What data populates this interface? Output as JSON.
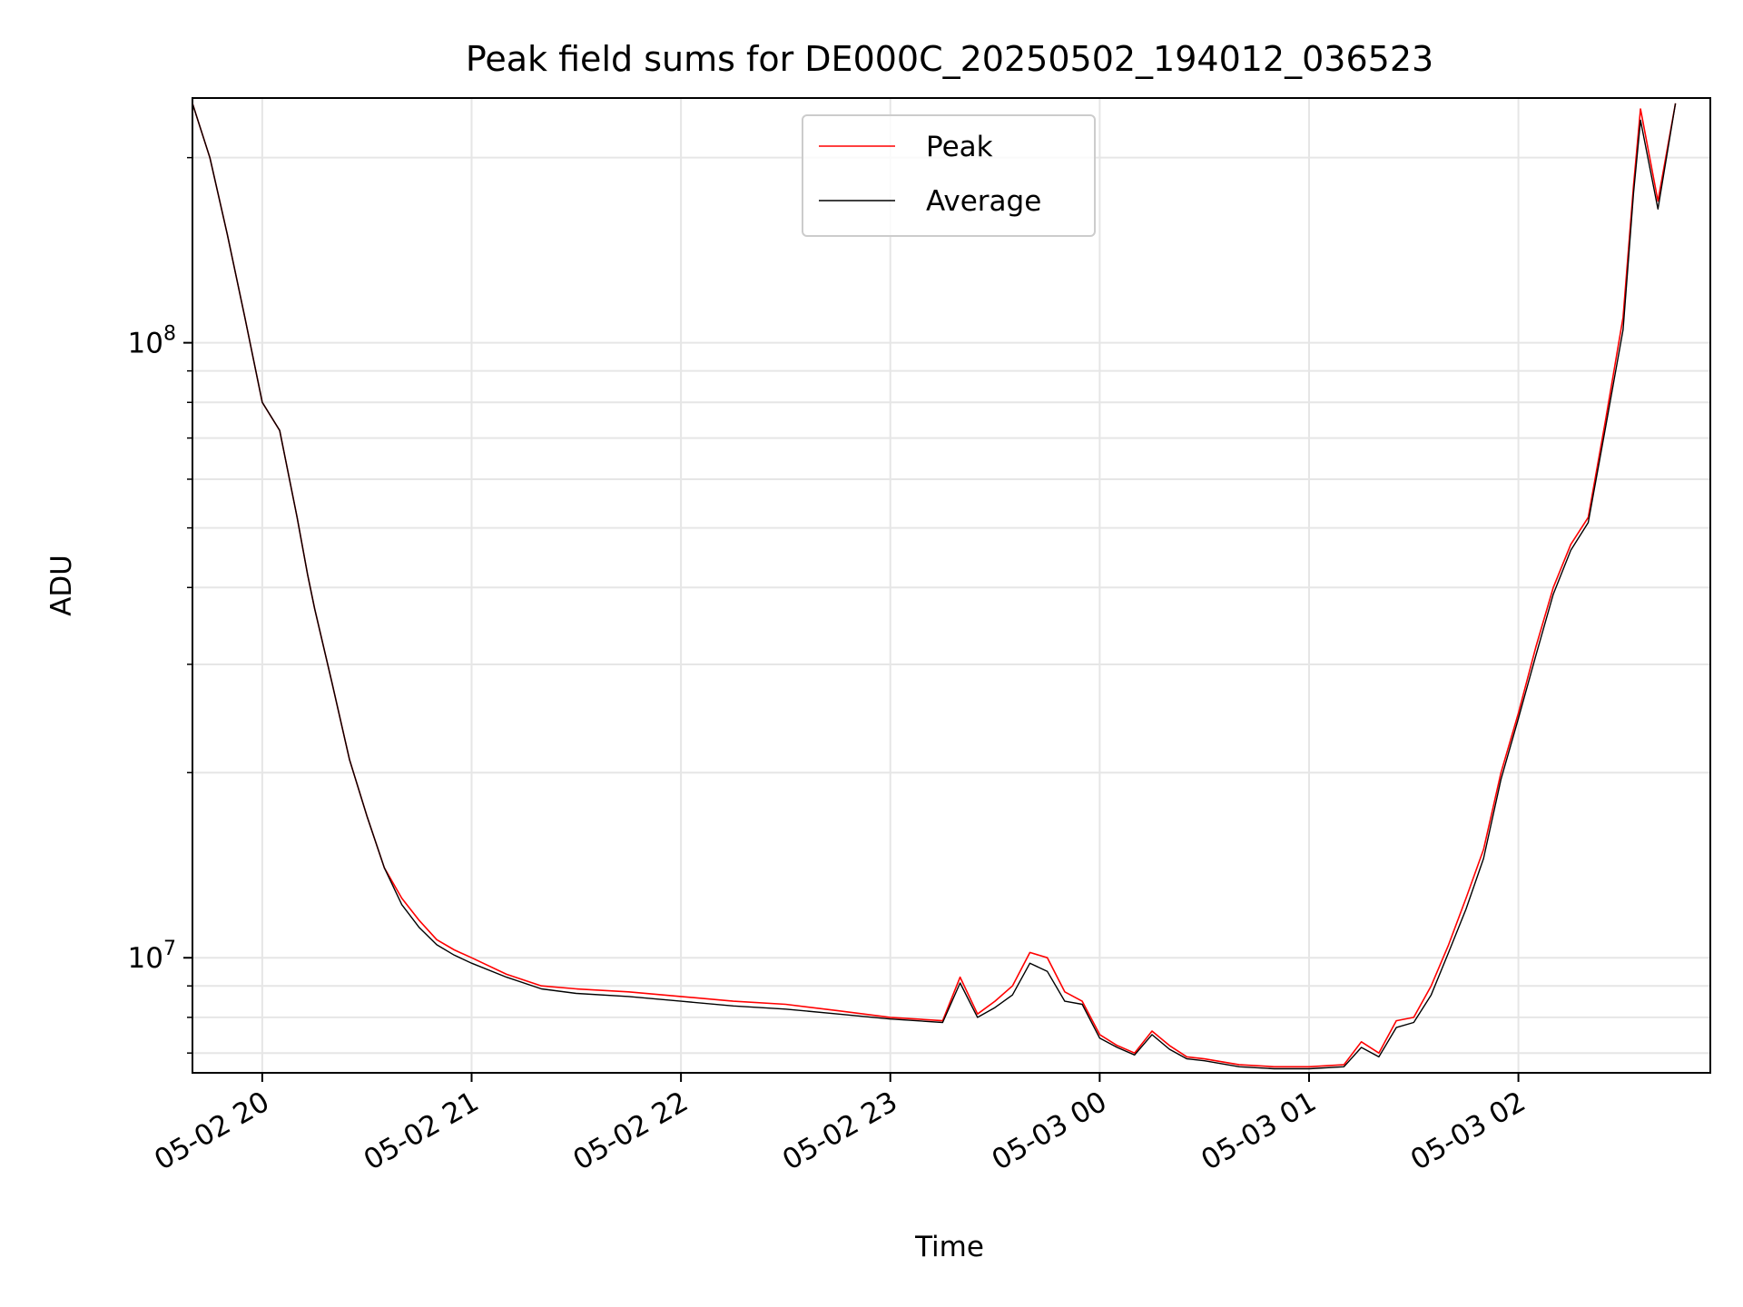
{
  "chart_data": {
    "type": "line",
    "title": "Peak field sums for DE000C_20250502_194012_036523",
    "xlabel": "Time",
    "ylabel": "ADU",
    "y_scale": "log",
    "xlim": [
      "2025-05-02 19:40",
      "2025-05-03 02:55"
    ],
    "ylim": [
      6500000,
      250000000
    ],
    "x_tick_labels": [
      "05-02 20",
      "05-02 21",
      "05-02 22",
      "05-02 23",
      "05-03 00",
      "05-03 01",
      "05-03 02"
    ],
    "y_tick_labels": [
      {
        "base": "10",
        "exp": "7",
        "value": 10000000
      },
      {
        "base": "10",
        "exp": "8",
        "value": 100000000
      }
    ],
    "grid": true,
    "legend_position": "top-center",
    "x": [
      "2025-05-02 19:40",
      "2025-05-02 19:45",
      "2025-05-02 19:50",
      "2025-05-02 19:55",
      "2025-05-02 20:00",
      "2025-05-02 20:05",
      "2025-05-02 20:10",
      "2025-05-02 20:13",
      "2025-05-02 20:15",
      "2025-05-02 20:20",
      "2025-05-02 20:25",
      "2025-05-02 20:30",
      "2025-05-02 20:35",
      "2025-05-02 20:40",
      "2025-05-02 20:45",
      "2025-05-02 20:50",
      "2025-05-02 20:55",
      "2025-05-02 21:00",
      "2025-05-02 21:10",
      "2025-05-02 21:20",
      "2025-05-02 21:30",
      "2025-05-02 21:45",
      "2025-05-02 22:00",
      "2025-05-02 22:15",
      "2025-05-02 22:30",
      "2025-05-02 22:45",
      "2025-05-02 23:00",
      "2025-05-02 23:15",
      "2025-05-02 23:20",
      "2025-05-02 23:25",
      "2025-05-02 23:30",
      "2025-05-02 23:35",
      "2025-05-02 23:40",
      "2025-05-02 23:45",
      "2025-05-02 23:50",
      "2025-05-02 23:55",
      "2025-05-03 00:00",
      "2025-05-03 00:05",
      "2025-05-03 00:10",
      "2025-05-03 00:15",
      "2025-05-03 00:20",
      "2025-05-03 00:25",
      "2025-05-03 00:30",
      "2025-05-03 00:40",
      "2025-05-03 00:50",
      "2025-05-03 01:00",
      "2025-05-03 01:10",
      "2025-05-03 01:15",
      "2025-05-03 01:20",
      "2025-05-03 01:25",
      "2025-05-03 01:30",
      "2025-05-03 01:35",
      "2025-05-03 01:40",
      "2025-05-03 01:45",
      "2025-05-03 01:50",
      "2025-05-03 01:55",
      "2025-05-03 02:00",
      "2025-05-03 02:05",
      "2025-05-03 02:10",
      "2025-05-03 02:15",
      "2025-05-03 02:20",
      "2025-05-03 02:25",
      "2025-05-03 02:30",
      "2025-05-03 02:33",
      "2025-05-03 02:35",
      "2025-05-03 02:40",
      "2025-05-03 02:45"
    ],
    "series": [
      {
        "name": "Peak",
        "color": "#ff0000",
        "values": [
          245000000,
          200000000,
          150000000,
          110000000,
          80000000,
          72000000,
          52000000,
          42000000,
          37000000,
          28000000,
          21000000,
          17000000,
          14000000,
          12500000,
          11500000,
          10700000,
          10300000,
          10000000,
          9400000,
          9000000,
          8900000,
          8800000,
          8650000,
          8500000,
          8400000,
          8200000,
          8000000,
          7900000,
          9300000,
          8100000,
          8500000,
          9000000,
          10200000,
          10000000,
          8800000,
          8500000,
          7500000,
          7200000,
          7000000,
          7600000,
          7200000,
          6900000,
          6850000,
          6700000,
          6650000,
          6650000,
          6700000,
          7300000,
          7000000,
          7900000,
          8000000,
          9000000,
          10500000,
          12500000,
          15000000,
          20000000,
          25000000,
          32000000,
          40000000,
          47000000,
          52000000,
          75000000,
          110000000,
          180000000,
          240000000,
          170000000,
          245000000
        ]
      },
      {
        "name": "Average",
        "color": "#000000",
        "values": [
          245000000,
          200000000,
          150000000,
          110000000,
          80000000,
          72000000,
          52000000,
          42000000,
          37000000,
          28000000,
          21000000,
          17000000,
          14000000,
          12200000,
          11200000,
          10500000,
          10100000,
          9800000,
          9300000,
          8900000,
          8750000,
          8650000,
          8500000,
          8350000,
          8250000,
          8100000,
          7950000,
          7850000,
          9100000,
          8000000,
          8300000,
          8700000,
          9800000,
          9500000,
          8500000,
          8400000,
          7400000,
          7150000,
          6950000,
          7500000,
          7100000,
          6850000,
          6800000,
          6650000,
          6600000,
          6600000,
          6650000,
          7150000,
          6900000,
          7700000,
          7850000,
          8700000,
          10200000,
          12000000,
          14500000,
          19500000,
          24500000,
          31000000,
          39000000,
          46000000,
          51000000,
          73000000,
          105000000,
          175000000,
          230000000,
          165000000,
          245000000
        ]
      }
    ]
  }
}
